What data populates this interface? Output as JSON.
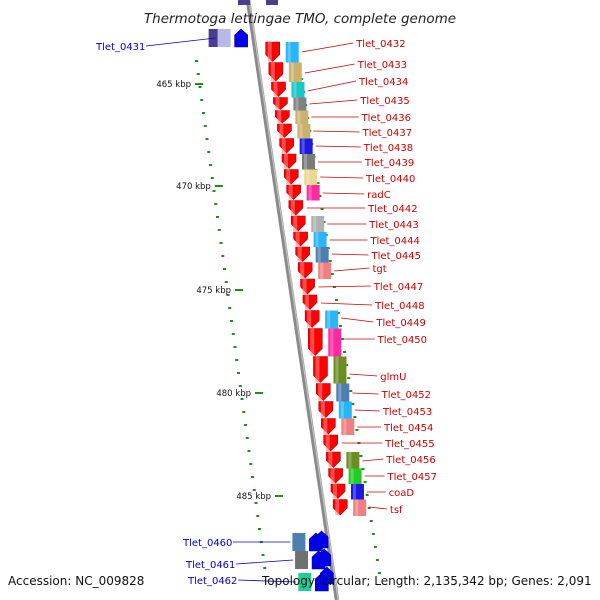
{
  "title": "Thermotoga lettingae TMO, complete genome",
  "footer": {
    "accession": "Accession: NC_009828",
    "summary": "Topology: circular; Length: 2,135,342 bp; Genes: 2,091"
  },
  "scale_ticks": [
    {
      "label": "465 kbp"
    },
    {
      "label": "470 kbp"
    },
    {
      "label": "475 kbp"
    },
    {
      "label": "480 kbp"
    },
    {
      "label": "485 kbp"
    }
  ],
  "colors": {
    "forward_label": "#cc0000",
    "reverse_label": "#0000cc",
    "forward_gene": "#ff0000",
    "reverse_gene": "#0000ee",
    "reverse_gene_dark": "#4a3f8c",
    "backbone": "#8a8a8a",
    "dots": "#1f8f1f"
  },
  "forward_genes": [
    {
      "label": "Tlet_0432",
      "cog": "#29b6f6"
    },
    {
      "label": "Tlet_0433",
      "cog": "#c9b26e"
    },
    {
      "label": "Tlet_0434",
      "cog": "#19c6c6"
    },
    {
      "label": "Tlet_0435",
      "cog": "#808080"
    },
    {
      "label": "Tlet_0436",
      "cog": "#c9b26e"
    },
    {
      "label": "Tlet_0437",
      "cog": "#c9b26e"
    },
    {
      "label": "Tlet_0438",
      "cog": "#1a1ae0"
    },
    {
      "label": "Tlet_0439",
      "cog": "#7a7a7a"
    },
    {
      "label": "Tlet_0440",
      "cog": "#e8d890"
    },
    {
      "label": "radC",
      "cog": "#ff2aa0"
    },
    {
      "label": "Tlet_0442",
      "cog": ""
    },
    {
      "label": "Tlet_0443",
      "cog": "#b0b0b0"
    },
    {
      "label": "Tlet_0444",
      "cog": "#29b6f6"
    },
    {
      "label": "Tlet_0445",
      "cog": "#4f7fb0"
    },
    {
      "label": "tgt",
      "cog": "#f08080"
    },
    {
      "label": "Tlet_0447",
      "cog": ""
    },
    {
      "label": "Tlet_0448",
      "cog": ""
    },
    {
      "label": "Tlet_0449",
      "cog": "#29b6f6"
    },
    {
      "label": "Tlet_0450",
      "cog": "#ff2aa0"
    },
    {
      "label": "glmU",
      "cog": "#6b8e23"
    },
    {
      "label": "Tlet_0452",
      "cog": "#4f7fb0"
    },
    {
      "label": "Tlet_0453",
      "cog": "#29b6f6"
    },
    {
      "label": "Tlet_0454",
      "cog": "#f08080"
    },
    {
      "label": "Tlet_0455",
      "cog": ""
    },
    {
      "label": "Tlet_0456",
      "cog": "#6b8e23"
    },
    {
      "label": "Tlet_0457",
      "cog": "#22cc22"
    },
    {
      "label": "coaD",
      "cog": "#1a1ae0"
    },
    {
      "label": "tsf",
      "cog": "#f08080"
    }
  ],
  "reverse_genes": [
    {
      "label": "Tlet_0431",
      "cog": "#b8b8e8"
    },
    {
      "label": "Tlet_0460",
      "cog": "#4f7fb0"
    },
    {
      "label": "Tlet_0461",
      "cog": "#707070"
    },
    {
      "label": "Tlet_0462",
      "cog": "#22cc99"
    }
  ]
}
